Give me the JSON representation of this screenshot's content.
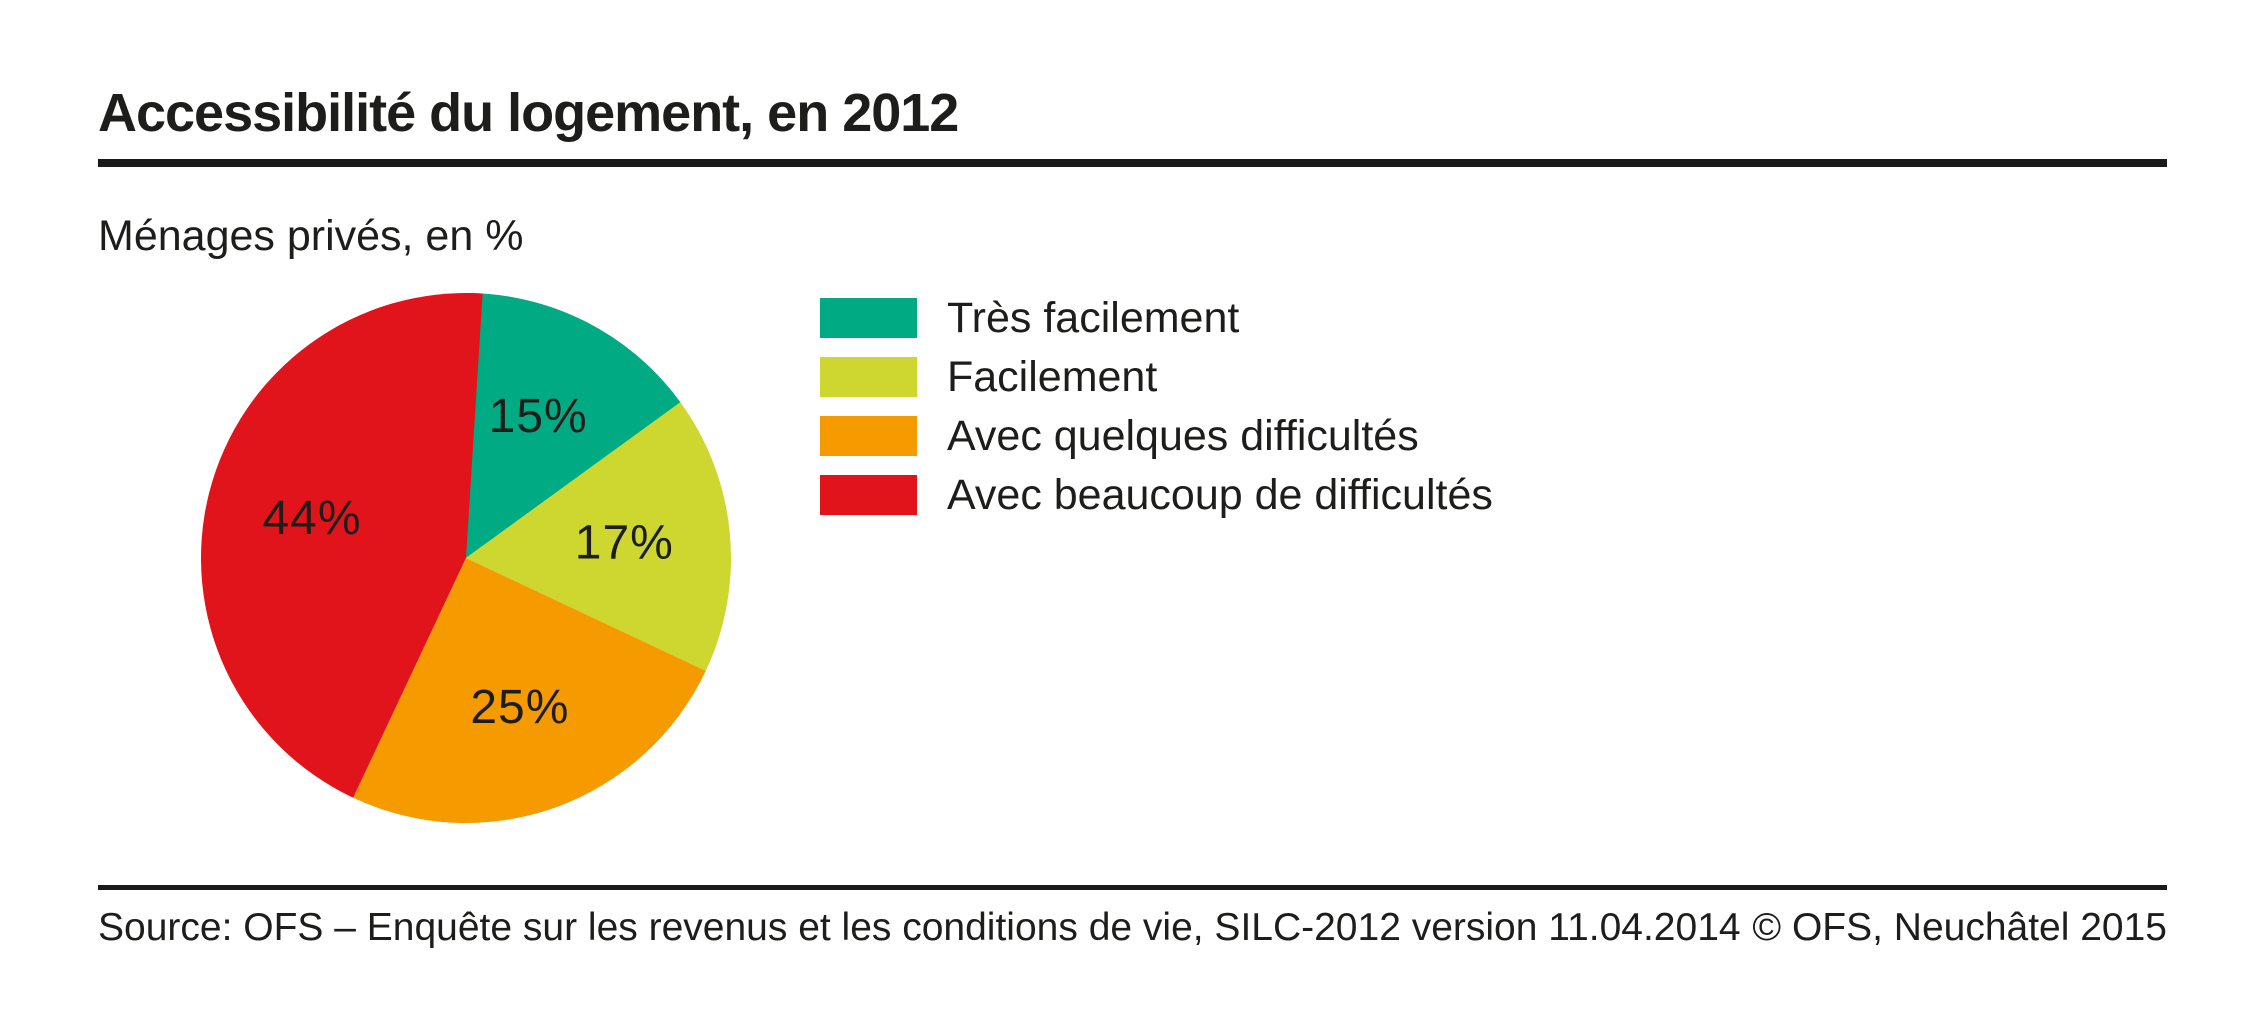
{
  "header": {
    "title": "Accessibilité du logement, en 2012",
    "subtitle": "Ménages privés, en %"
  },
  "chart_data": {
    "type": "pie",
    "title": "Accessibilité du logement, en 2012",
    "subtitle": "Ménages privés, en %",
    "unit": "%",
    "start_angle": "12-oclock",
    "direction": "clockwise",
    "legend_position": "right",
    "slices": [
      {
        "label": "Très facilement",
        "value": 15,
        "display": "15%",
        "color": "#00AB84"
      },
      {
        "label": "Facilement",
        "value": 17,
        "display": "17%",
        "color": "#CDD730"
      },
      {
        "label": "Avec quelques difficultés",
        "value": 25,
        "display": "25%",
        "color": "#F59B00"
      },
      {
        "label": "Avec beaucoup de difficultés",
        "value": 44,
        "display": "44%",
        "color": "#E2141B"
      }
    ]
  },
  "footer": {
    "source": "Source: OFS – Enquête sur les revenus et les conditions de vie, SILC-2012 version 11.04.2014",
    "copyright": "© OFS, Neuchâtel 2015"
  },
  "colors": {
    "text": "#1d1d1b",
    "rule": "#1a1a1a",
    "background": "#ffffff"
  }
}
